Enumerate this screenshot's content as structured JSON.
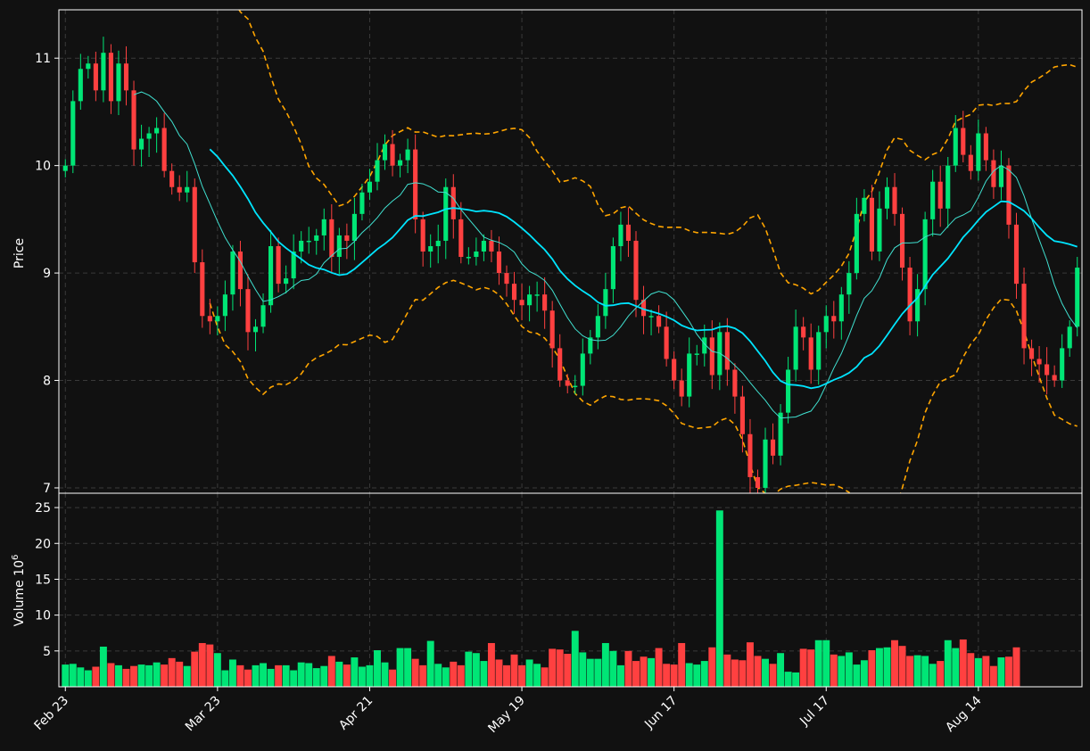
{
  "chart_data": [
    {
      "type": "candlestick",
      "panel": "price",
      "ylabel": "Price",
      "ylim": [
        6.95,
        11.45
      ],
      "y_ticks": [
        "7",
        "8",
        "9",
        "10",
        "11"
      ],
      "x_tick_labels": [
        "Feb 23",
        "Mar 23",
        "Apr 21",
        "May 19",
        "Jun 17",
        "Jul 17",
        "Aug 14"
      ],
      "grid": true,
      "colors": {
        "up": "#00e676",
        "down": "#ff4040",
        "ma_short": "#40e0d0",
        "ma_long": "#00e5ff",
        "bands": "#ffa500",
        "background": "#111111"
      },
      "close_anchors": [
        10.0,
        10.6,
        10.9,
        10.95,
        10.7,
        11.05,
        10.6,
        10.95,
        10.7,
        10.15,
        10.25,
        10.3,
        10.35,
        9.95,
        9.8,
        9.75,
        9.8,
        9.1,
        8.6,
        8.55,
        8.6,
        8.8,
        9.2,
        8.85,
        8.45,
        8.5,
        8.7,
        9.25,
        8.9,
        8.95,
        9.2,
        9.3,
        9.3,
        9.35,
        9.5,
        9.15,
        9.35,
        9.3,
        9.55,
        9.75,
        9.85,
        10.05,
        10.2,
        10.0,
        10.05,
        10.15,
        9.5,
        9.2,
        9.25,
        9.3,
        9.8,
        9.5,
        9.15,
        9.15,
        9.2,
        9.3,
        9.2,
        9.0,
        8.9,
        8.75,
        8.7,
        8.8,
        8.8,
        8.65,
        8.3,
        8.0,
        7.95,
        7.95,
        8.25,
        8.4,
        8.6,
        8.85,
        9.25,
        9.45,
        9.3,
        8.75,
        8.6,
        8.6,
        8.5,
        8.2,
        8.0,
        7.85,
        8.25,
        8.25,
        8.4,
        8.05,
        8.45,
        8.1,
        7.85,
        7.5,
        7.1,
        7.0,
        7.45,
        7.3,
        7.7,
        8.1,
        8.5,
        8.4,
        8.1,
        8.45,
        8.6,
        8.55,
        8.8,
        9.0,
        9.55,
        9.7,
        9.2,
        9.6,
        9.8,
        9.55,
        9.05,
        8.55,
        8.85,
        9.5,
        9.85,
        9.6,
        10.0,
        10.35,
        10.1,
        9.95,
        10.3,
        10.05,
        9.8,
        10.0,
        9.45,
        8.9,
        8.3,
        8.2,
        8.15,
        8.05,
        8.0,
        8.3,
        8.5,
        9.05
      ],
      "volume_anchors": [
        3.1,
        3.2,
        2.7,
        2.3,
        2.8,
        5.6,
        3.3,
        3.0,
        2.5,
        2.9,
        3.1,
        3.0,
        3.4,
        3.1,
        4.0,
        3.5,
        2.9,
        4.9,
        6.1,
        5.9,
        4.7,
        2.3,
        3.8,
        3.0,
        2.4,
        3.0,
        3.3,
        2.5,
        3.0,
        3.0,
        2.3,
        3.4,
        3.3,
        2.6,
        2.9,
        4.3,
        3.5,
        3.1,
        4.1,
        2.8,
        3.0,
        5.1,
        3.4,
        2.4,
        5.4,
        5.4,
        3.9,
        3.0,
        6.4,
        3.2,
        2.7,
        3.5,
        3.0,
        4.9,
        4.7,
        3.6,
        6.1,
        3.8,
        3.0,
        4.5,
        3.0,
        3.8,
        3.2,
        2.7,
        5.3,
        5.2,
        4.6,
        7.8,
        4.8,
        3.9,
        3.9,
        6.1,
        5.0,
        3.0,
        5.0,
        3.6,
        4.2,
        4.0,
        5.4,
        3.2,
        3.1,
        6.1,
        3.3,
        3.1,
        3.6,
        5.5,
        24.6,
        4.5,
        3.8,
        3.7,
        6.2,
        4.3,
        3.9,
        3.2,
        4.7,
        2.1,
        2.0,
        5.3,
        5.2,
        6.5,
        6.5,
        4.5,
        4.3,
        4.8,
        3.1,
        3.7,
        5.1,
        5.4,
        5.5,
        6.5,
        5.7,
        4.3,
        4.4,
        4.3,
        3.2,
        3.6,
        6.5,
        5.4,
        6.6,
        4.7,
        4.0,
        4.3,
        2.9,
        4.1,
        4.2,
        5.5
      ]
    },
    {
      "type": "bar",
      "panel": "volume",
      "ylabel": "Volume  10",
      "ylabel_exponent": "6",
      "ylim": [
        0,
        27
      ],
      "y_ticks": [
        "5",
        "10",
        "15",
        "20",
        "25"
      ],
      "grid": true
    }
  ]
}
